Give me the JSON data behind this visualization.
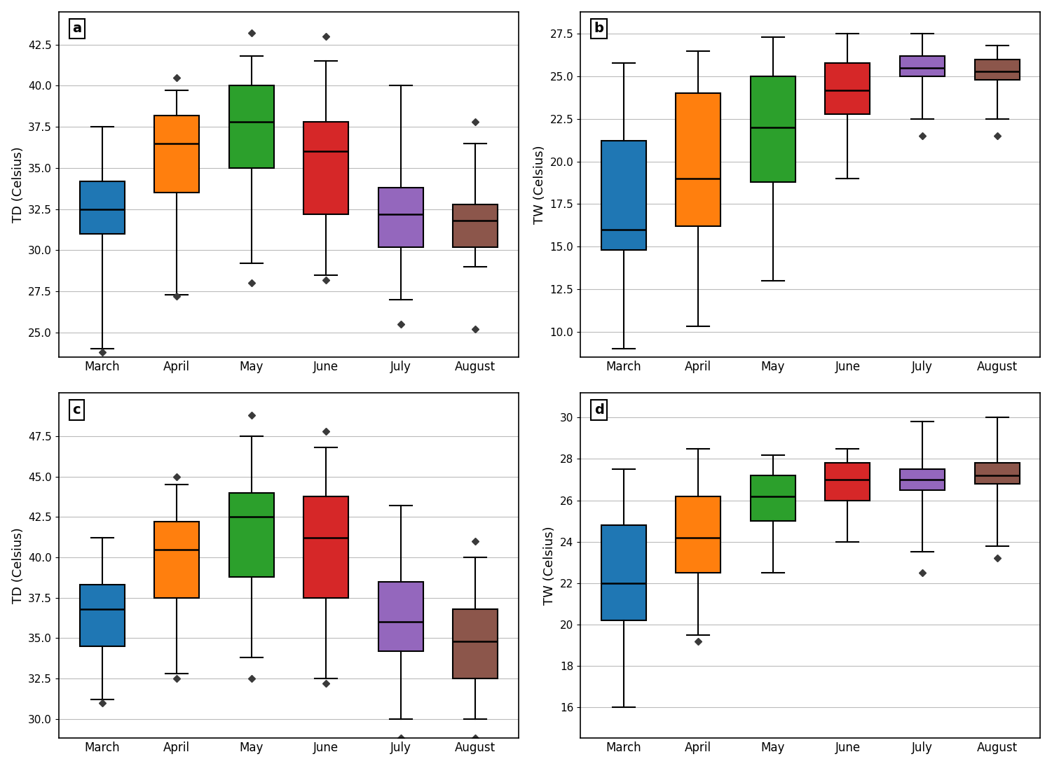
{
  "months": [
    "March",
    "April",
    "May",
    "June",
    "July",
    "August"
  ],
  "colors": [
    "#1f77b4",
    "#ff7f0e",
    "#2ca02c",
    "#d62728",
    "#9467bd",
    "#8c564b"
  ],
  "panel_labels": [
    "a",
    "b",
    "c",
    "d"
  ],
  "panel_a": {
    "ylabel": "TD (Celsius)",
    "ylim": [
      23.5,
      44.5
    ],
    "yticks": [
      25.0,
      27.5,
      30.0,
      32.5,
      35.0,
      37.5,
      40.0,
      42.5
    ],
    "boxes": [
      {
        "whislo": 24.0,
        "q1": 31.0,
        "med": 32.5,
        "q3": 34.2,
        "whishi": 37.5,
        "fliers": [
          23.8
        ]
      },
      {
        "whislo": 27.3,
        "q1": 33.5,
        "med": 36.5,
        "q3": 38.2,
        "whishi": 39.7,
        "fliers": [
          27.2,
          40.5
        ]
      },
      {
        "whislo": 29.2,
        "q1": 35.0,
        "med": 37.8,
        "q3": 40.0,
        "whishi": 41.8,
        "fliers": [
          28.0,
          43.2
        ]
      },
      {
        "whislo": 28.5,
        "q1": 32.2,
        "med": 36.0,
        "q3": 37.8,
        "whishi": 41.5,
        "fliers": [
          28.2,
          43.0
        ]
      },
      {
        "whislo": 27.0,
        "q1": 30.2,
        "med": 32.2,
        "q3": 33.8,
        "whishi": 40.0,
        "fliers": [
          25.5
        ]
      },
      {
        "whislo": 29.0,
        "q1": 30.2,
        "med": 31.8,
        "q3": 32.8,
        "whishi": 36.5,
        "fliers": [
          25.2,
          37.8
        ]
      }
    ]
  },
  "panel_b": {
    "ylabel": "TW (Celsius)",
    "ylim": [
      8.5,
      28.8
    ],
    "yticks": [
      10.0,
      12.5,
      15.0,
      17.5,
      20.0,
      22.5,
      25.0,
      27.5
    ],
    "boxes": [
      {
        "whislo": 9.0,
        "q1": 14.8,
        "med": 16.0,
        "q3": 21.2,
        "whishi": 25.8,
        "fliers": []
      },
      {
        "whislo": 10.3,
        "q1": 16.2,
        "med": 19.0,
        "q3": 24.0,
        "whishi": 26.5,
        "fliers": []
      },
      {
        "whislo": 13.0,
        "q1": 18.8,
        "med": 22.0,
        "q3": 25.0,
        "whishi": 27.3,
        "fliers": []
      },
      {
        "whislo": 19.0,
        "q1": 22.8,
        "med": 24.2,
        "q3": 25.8,
        "whishi": 27.5,
        "fliers": []
      },
      {
        "whislo": 22.5,
        "q1": 25.0,
        "med": 25.5,
        "q3": 26.2,
        "whishi": 27.5,
        "fliers": [
          21.5
        ]
      },
      {
        "whislo": 22.5,
        "q1": 24.8,
        "med": 25.3,
        "q3": 26.0,
        "whishi": 26.8,
        "fliers": [
          21.5
        ]
      }
    ]
  },
  "panel_c": {
    "ylabel": "TD (Celsius)",
    "ylim": [
      28.8,
      50.2
    ],
    "yticks": [
      30.0,
      32.5,
      35.0,
      37.5,
      40.0,
      42.5,
      45.0,
      47.5
    ],
    "boxes": [
      {
        "whislo": 31.2,
        "q1": 34.5,
        "med": 36.8,
        "q3": 38.3,
        "whishi": 41.2,
        "fliers": [
          31.0
        ]
      },
      {
        "whislo": 32.8,
        "q1": 37.5,
        "med": 40.5,
        "q3": 42.2,
        "whishi": 44.5,
        "fliers": [
          32.5,
          45.0
        ]
      },
      {
        "whislo": 33.8,
        "q1": 38.8,
        "med": 42.5,
        "q3": 44.0,
        "whishi": 47.5,
        "fliers": [
          32.5,
          48.8
        ]
      },
      {
        "whislo": 32.5,
        "q1": 37.5,
        "med": 41.2,
        "q3": 43.8,
        "whishi": 46.8,
        "fliers": [
          32.2,
          47.8
        ]
      },
      {
        "whislo": 30.0,
        "q1": 34.2,
        "med": 36.0,
        "q3": 38.5,
        "whishi": 43.2,
        "fliers": [
          28.8
        ]
      },
      {
        "whislo": 30.0,
        "q1": 32.5,
        "med": 34.8,
        "q3": 36.8,
        "whishi": 40.0,
        "fliers": [
          28.8,
          41.0
        ]
      }
    ]
  },
  "panel_d": {
    "ylabel": "TW (Celsius)",
    "ylim": [
      14.5,
      31.2
    ],
    "yticks": [
      16.0,
      18.0,
      20.0,
      22.0,
      24.0,
      26.0,
      28.0,
      30.0
    ],
    "boxes": [
      {
        "whislo": 16.0,
        "q1": 20.2,
        "med": 22.0,
        "q3": 24.8,
        "whishi": 27.5,
        "fliers": []
      },
      {
        "whislo": 19.5,
        "q1": 22.5,
        "med": 24.2,
        "q3": 26.2,
        "whishi": 28.5,
        "fliers": [
          19.2
        ]
      },
      {
        "whislo": 22.5,
        "q1": 25.0,
        "med": 26.2,
        "q3": 27.2,
        "whishi": 28.2,
        "fliers": []
      },
      {
        "whislo": 24.0,
        "q1": 26.0,
        "med": 27.0,
        "q3": 27.8,
        "whishi": 28.5,
        "fliers": []
      },
      {
        "whislo": 23.5,
        "q1": 26.5,
        "med": 27.0,
        "q3": 27.5,
        "whishi": 29.8,
        "fliers": [
          22.5
        ]
      },
      {
        "whislo": 23.8,
        "q1": 26.8,
        "med": 27.2,
        "q3": 27.8,
        "whishi": 30.0,
        "fliers": [
          23.2
        ]
      }
    ]
  }
}
